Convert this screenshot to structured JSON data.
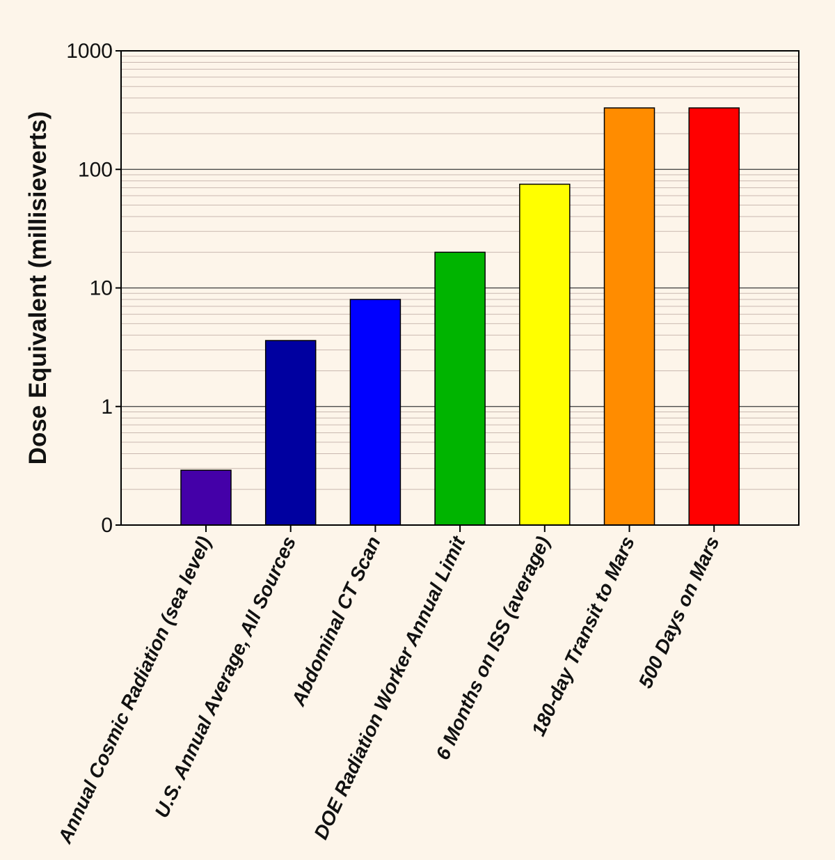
{
  "chart_data": {
    "type": "bar",
    "title": "",
    "xlabel": "",
    "ylabel": "Dose Equivalent (millisieverts)",
    "yscale": "log",
    "ylim": [
      0.1,
      1000
    ],
    "yticks": [
      {
        "value": 0.1,
        "label": "0"
      },
      {
        "value": 1,
        "label": "1"
      },
      {
        "value": 10,
        "label": "10"
      },
      {
        "value": 100,
        "label": "100"
      },
      {
        "value": 1000,
        "label": "1000"
      }
    ],
    "grid": true,
    "legend": "none",
    "categories": [
      "Annual Cosmic Radiation (sea level)",
      "U.S. Annual Average, All Sources",
      "Abdominal CT Scan",
      "DOE Radiation Worker Annual Limit",
      "6 Months on ISS (average)",
      "180-day Transit to Mars",
      "500 Days on Mars"
    ],
    "values": [
      0.29,
      3.6,
      8,
      20,
      75,
      330,
      330
    ],
    "colors": [
      "#4400a8",
      "#0000a0",
      "#0000ff",
      "#00b400",
      "#ffff00",
      "#ff8c00",
      "#ff0000"
    ],
    "background": "#fdf5ea",
    "plot_background": "#fdf5ea"
  }
}
